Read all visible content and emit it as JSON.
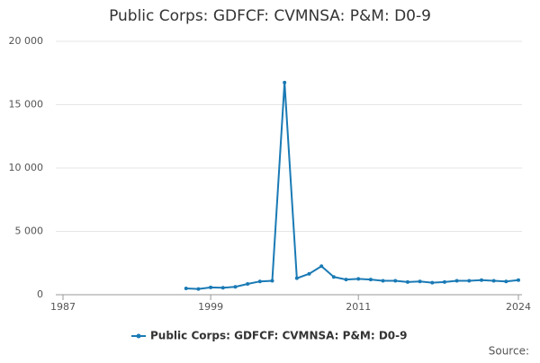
{
  "chart_data": {
    "type": "line",
    "title": "Public Corps: GDFCF: CVMNSA: P&M: D0-9",
    "x": [
      1997,
      1998,
      1999,
      2000,
      2001,
      2002,
      2003,
      2004,
      2005,
      2006,
      2007,
      2008,
      2009,
      2010,
      2011,
      2012,
      2013,
      2014,
      2015,
      2016,
      2017,
      2018,
      2019,
      2020,
      2021,
      2022,
      2023,
      2024
    ],
    "series": [
      {
        "name": "Public Corps: GDFCF: CVMNSA: P&M: D0-9",
        "color": "#1a7ab5",
        "values": [
          500,
          450,
          580,
          550,
          620,
          850,
          1050,
          1100,
          16750,
          1300,
          1650,
          2250,
          1400,
          1200,
          1250,
          1200,
          1100,
          1100,
          1000,
          1050,
          950,
          1000,
          1100,
          1100,
          1150,
          1100,
          1050,
          1150
        ]
      }
    ],
    "xlim": [
      1987,
      2024
    ],
    "xticks": [
      1987,
      1999,
      2011,
      2024
    ],
    "ylim": [
      0,
      20000
    ],
    "yticks": [
      0,
      {
        "value": 5000,
        "label": "5 000"
      },
      {
        "value": 10000,
        "label": "10 000"
      },
      {
        "value": 15000,
        "label": "15 000"
      },
      {
        "value": 20000,
        "label": "20 000"
      }
    ],
    "grid": true,
    "legend": "bottom",
    "source": "Source:"
  }
}
